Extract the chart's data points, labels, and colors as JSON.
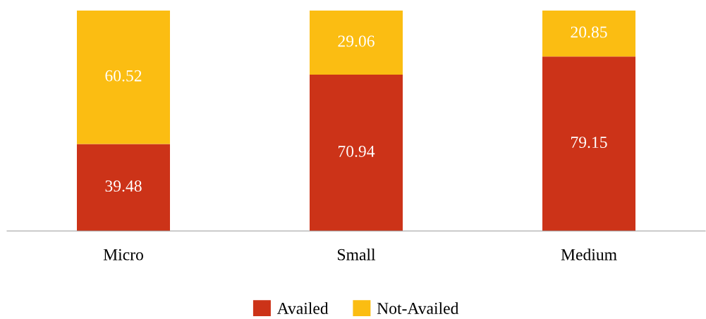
{
  "chart_data": {
    "type": "bar",
    "stacked": true,
    "categories": [
      "Micro",
      "Small",
      "Medium"
    ],
    "series": [
      {
        "name": "Availed",
        "color": "#cc3318",
        "values": [
          39.48,
          70.94,
          79.15
        ]
      },
      {
        "name": "Not-Availed",
        "color": "#fbbd12",
        "values": [
          60.52,
          29.06,
          20.85
        ]
      }
    ],
    "data_labels": true,
    "legend": "bottom",
    "grid": false
  }
}
